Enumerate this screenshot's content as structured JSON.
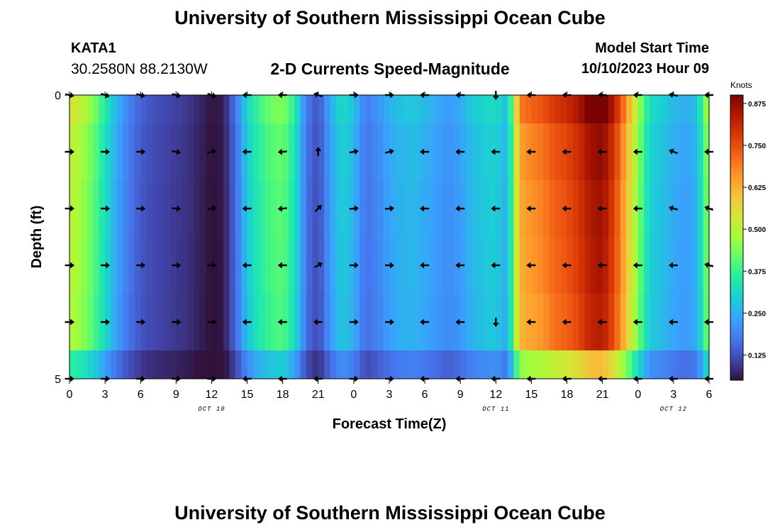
{
  "header": {
    "title": "University of Southern Mississippi Ocean Cube",
    "station": "KATA1",
    "coords": "30.2580N  88.2130W",
    "subtitle": "2-D Currents Speed-Magnitude",
    "start_label": "Model Start Time",
    "start_value": "10/10/2023 Hour 09"
  },
  "footer": {
    "title": "University of Southern Mississippi Ocean Cube"
  },
  "chart_data": {
    "type": "heatmap",
    "title": "2-D Currents Speed-Magnitude",
    "xlabel": "Forecast Time(Z)",
    "ylabel": "Depth (ft)",
    "x_hours_from_oct10_00": [
      0,
      54
    ],
    "ylim": [
      0,
      5
    ],
    "x_ticks": [
      "0",
      "3",
      "6",
      "9",
      "12",
      "15",
      "18",
      "21",
      "0",
      "3",
      "6",
      "9",
      "12",
      "15",
      "18",
      "21",
      "0",
      "3",
      "6"
    ],
    "y_ticks": [
      "0",
      "5"
    ],
    "date_labels": [
      {
        "text": "OCT 10",
        "hour": 12
      },
      {
        "text": "OCT 11",
        "hour": 36
      },
      {
        "text": "OCT 12",
        "hour": 51
      }
    ],
    "colorbar": {
      "label": "Knots",
      "range": [
        0.05,
        0.9
      ],
      "ticks": [
        "0.875",
        "0.750",
        "0.625",
        "0.500",
        "0.375",
        "0.250",
        "0.125"
      ],
      "tick_values": [
        0.875,
        0.75,
        0.625,
        0.5,
        0.375,
        0.25,
        0.125
      ]
    },
    "speed_profile_knots": {
      "hours": [
        0,
        1,
        2,
        3,
        4,
        5,
        6,
        7,
        8,
        9,
        10,
        11,
        12,
        13,
        14,
        15,
        16,
        17,
        18,
        19,
        20,
        21,
        22,
        23,
        24,
        25,
        26,
        27,
        28,
        29,
        30,
        31,
        32,
        33,
        34,
        35,
        36,
        37,
        38,
        39,
        40,
        41,
        42,
        43,
        44,
        45,
        46,
        47,
        48,
        49,
        50,
        51,
        52,
        53,
        54
      ],
      "values": [
        0.52,
        0.48,
        0.42,
        0.33,
        0.24,
        0.18,
        0.14,
        0.12,
        0.11,
        0.1,
        0.09,
        0.07,
        0.05,
        0.06,
        0.16,
        0.29,
        0.36,
        0.4,
        0.42,
        0.34,
        0.17,
        0.12,
        0.23,
        0.3,
        0.26,
        0.17,
        0.2,
        0.24,
        0.26,
        0.27,
        0.25,
        0.23,
        0.21,
        0.23,
        0.27,
        0.29,
        0.3,
        0.25,
        0.65,
        0.68,
        0.7,
        0.74,
        0.76,
        0.8,
        0.86,
        0.88,
        0.78,
        0.63,
        0.45,
        0.3,
        0.28,
        0.25,
        0.23,
        0.26,
        0.48
      ]
    },
    "depth_layer_factors": [
      1.06,
      1.0,
      0.98,
      0.97,
      0.95,
      0.7
    ],
    "vector_rows_ft": [
      0,
      1,
      2,
      3,
      4,
      5
    ],
    "vector_hours": [
      0,
      3,
      6,
      9,
      12,
      15,
      18,
      21,
      24,
      27,
      30,
      33,
      36,
      39,
      42,
      45,
      48,
      51,
      54
    ],
    "vector_directions_deg": [
      [
        10,
        20,
        15,
        15,
        20,
        180,
        180,
        200,
        0,
        0,
        180,
        180,
        90,
        180,
        180,
        180,
        180,
        190,
        180
      ],
      [
        0,
        0,
        0,
        10,
        -15,
        180,
        175,
        -90,
        -10,
        -15,
        180,
        180,
        180,
        180,
        180,
        180,
        180,
        200,
        180
      ],
      [
        0,
        0,
        0,
        5,
        -10,
        180,
        175,
        -45,
        -5,
        -5,
        180,
        180,
        180,
        180,
        180,
        180,
        180,
        195,
        200
      ],
      [
        0,
        0,
        0,
        0,
        0,
        180,
        180,
        -30,
        0,
        0,
        180,
        180,
        180,
        180,
        180,
        180,
        180,
        180,
        195
      ],
      [
        0,
        0,
        0,
        0,
        0,
        180,
        180,
        180,
        0,
        0,
        180,
        180,
        90,
        180,
        180,
        180,
        180,
        180,
        180
      ],
      [
        0,
        0,
        0,
        0,
        0,
        180,
        180,
        180,
        0,
        0,
        180,
        180,
        180,
        180,
        180,
        180,
        180,
        180,
        180
      ]
    ]
  }
}
